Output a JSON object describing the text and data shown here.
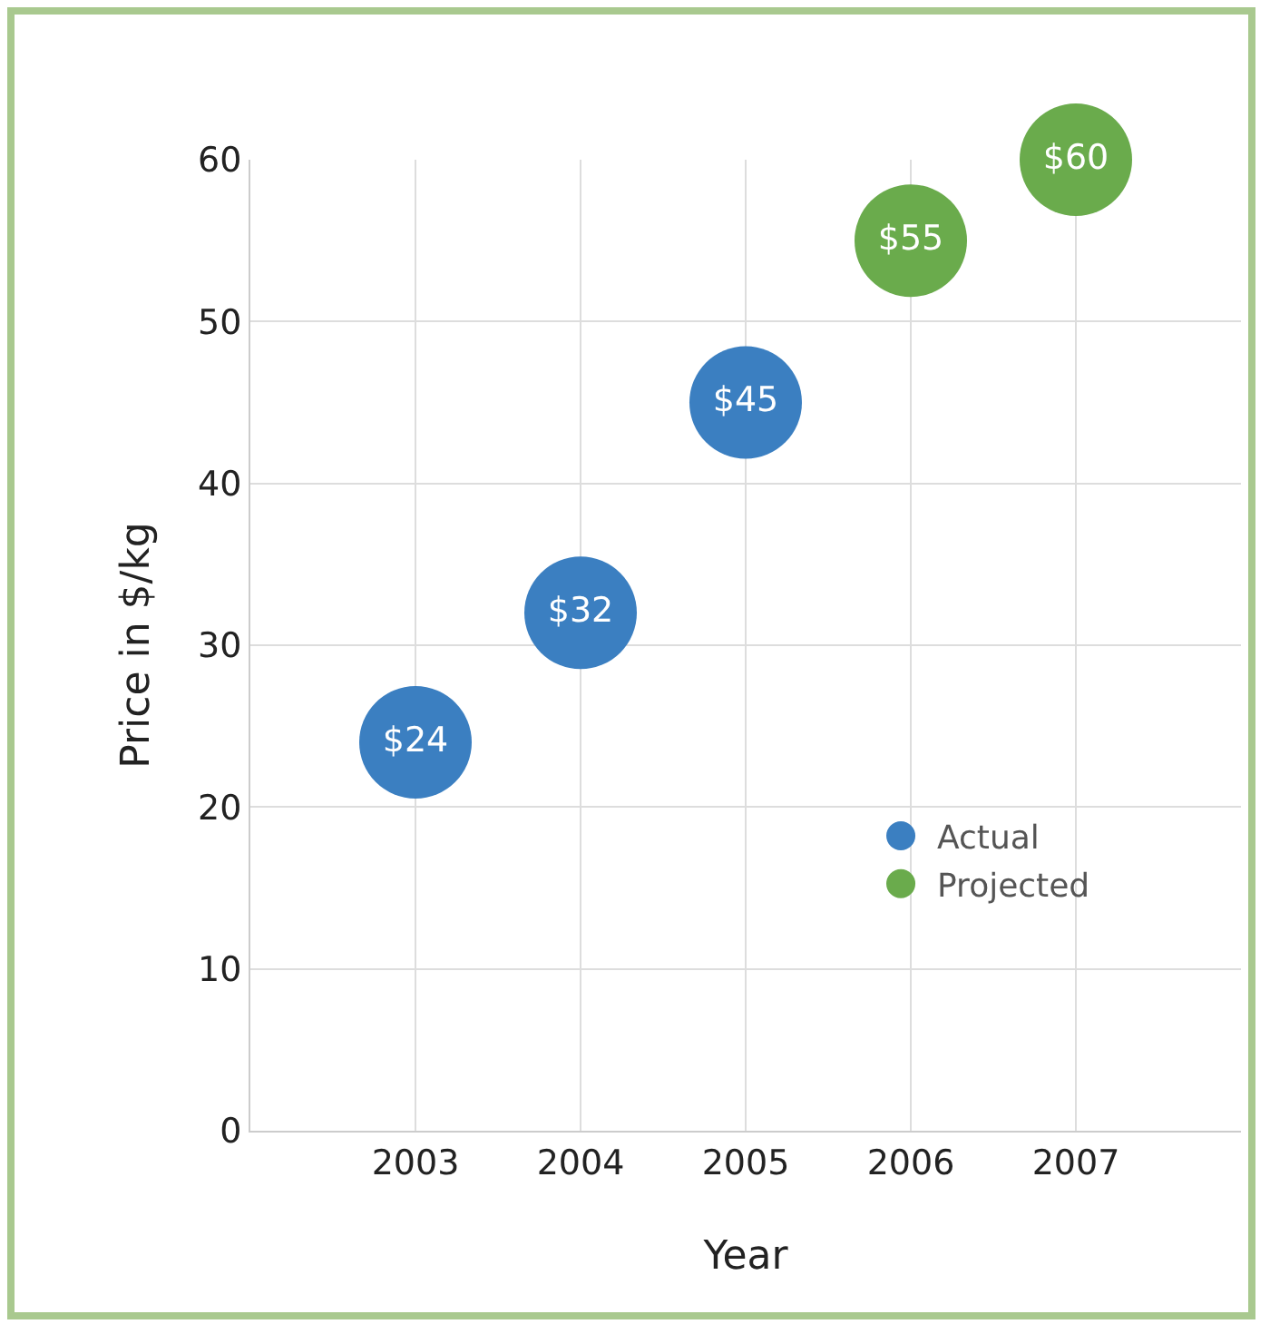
{
  "chart_data": {
    "type": "scatter",
    "xlabel": "Year",
    "ylabel": "Price in $/kg",
    "series": [
      {
        "name": "Actual",
        "color": "#3b7fc1",
        "x": [
          2003,
          2004,
          2005
        ],
        "values": [
          24,
          32,
          45
        ],
        "value_labels": [
          "$24",
          "$32",
          "$45"
        ]
      },
      {
        "name": "Projected",
        "color": "#6aab4c",
        "x": [
          2006,
          2007
        ],
        "values": [
          55,
          60
        ],
        "value_labels": [
          "$55",
          "$60"
        ]
      }
    ],
    "xlim": [
      2002,
      2008
    ],
    "xticks": [
      2003,
      2004,
      2005,
      2006,
      2007
    ],
    "ylim": [
      0,
      60
    ],
    "yticks": [
      0,
      10,
      20,
      30,
      40,
      50,
      60
    ],
    "grid": true,
    "legend": "bottom right",
    "marker": "circle"
  }
}
